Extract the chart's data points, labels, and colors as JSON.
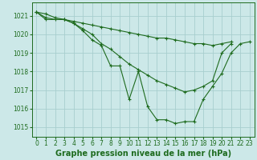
{
  "background_color": "#cce8e8",
  "grid_color": "#a8cece",
  "line_color": "#1e6b1e",
  "title": "Graphe pression niveau de la mer (hPa)",
  "xlim": [
    -0.5,
    23.5
  ],
  "ylim": [
    1014.5,
    1021.7
  ],
  "yticks": [
    1015,
    1016,
    1017,
    1018,
    1019,
    1020,
    1021
  ],
  "xticks": [
    0,
    1,
    2,
    3,
    4,
    5,
    6,
    7,
    8,
    9,
    10,
    11,
    12,
    13,
    14,
    15,
    16,
    17,
    18,
    19,
    20,
    21,
    22,
    23
  ],
  "line1_x": [
    0,
    1,
    2,
    3,
    4,
    5,
    6,
    7,
    8,
    9,
    10,
    11,
    12,
    13,
    14,
    15,
    16,
    17,
    18,
    19,
    20,
    21,
    22,
    23
  ],
  "line1_y": [
    1021.2,
    1021.1,
    1020.9,
    1020.8,
    1020.7,
    1020.6,
    1020.5,
    1020.4,
    1020.3,
    1020.2,
    1020.1,
    1020.0,
    1019.9,
    1019.8,
    1019.8,
    1019.7,
    1019.6,
    1019.5,
    1019.5,
    1019.4,
    1019.5,
    1019.6,
    null,
    null
  ],
  "line2_x": [
    0,
    1,
    2,
    3,
    4,
    5,
    6,
    7,
    8,
    9,
    10,
    11,
    12,
    13,
    14,
    15,
    16,
    17,
    18,
    19,
    20,
    21
  ],
  "line2_y": [
    1021.2,
    1020.9,
    1020.8,
    1020.8,
    1020.6,
    1020.3,
    1020.0,
    1019.5,
    1019.2,
    1018.8,
    1018.4,
    1018.1,
    1017.8,
    1017.5,
    1017.3,
    1017.1,
    1016.9,
    1017.0,
    1017.2,
    1017.5,
    1019.0,
    1019.5
  ],
  "line3_x": [
    0,
    1,
    3,
    4,
    5,
    6,
    7,
    8,
    9,
    10,
    11,
    12,
    13,
    14,
    15,
    16,
    17,
    18,
    19,
    20,
    21,
    22,
    23
  ],
  "line3_y": [
    1021.2,
    1020.8,
    1020.8,
    1020.6,
    1020.2,
    1019.7,
    1019.4,
    1018.3,
    1018.3,
    1016.5,
    1018.0,
    1016.1,
    1015.4,
    1015.4,
    1015.2,
    1015.3,
    1015.3,
    1016.5,
    1017.2,
    1017.9,
    1019.0,
    1019.5,
    1019.6
  ]
}
